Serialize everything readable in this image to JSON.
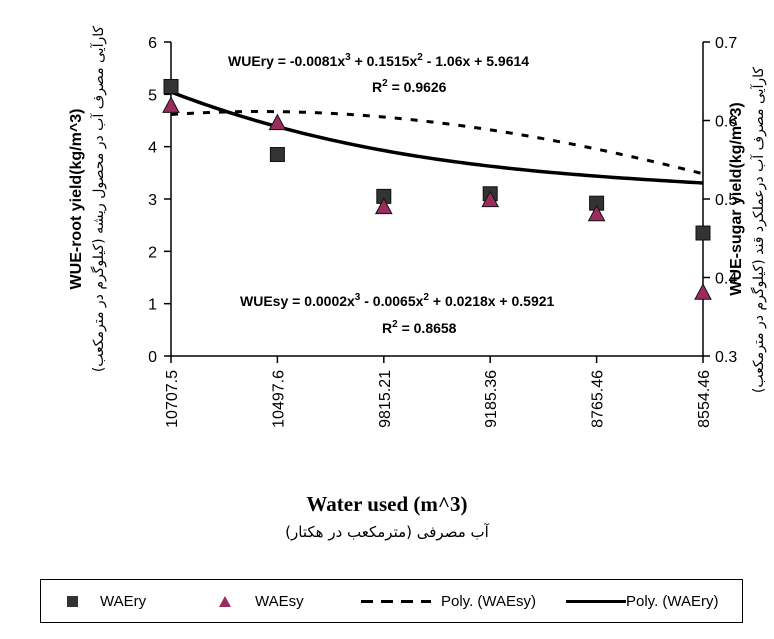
{
  "chart_data": {
    "type": "line",
    "categories": [
      "10707.5",
      "10497.6",
      "9815.21",
      "9185.36",
      "8765.46",
      "8554.46"
    ],
    "x_title": "Water used (m^3)",
    "x_subtitle": "آب مصرفی (مترمکعب در هکتار)",
    "y_left": {
      "title": "WUE-root yield(kg/m^3)",
      "title_fa": "کارآیی مصرف آب در محصول ریشه (کیلوگرم در مترمکعب)",
      "range": [
        0,
        6
      ],
      "ticks": [
        "0",
        "1",
        "2",
        "3",
        "4",
        "5",
        "6"
      ]
    },
    "y_right": {
      "title": "WUE-sugar yield(kg/m^3)",
      "title_fa": "کارآیی مصرف آب درعملکرد قند (کیلوگرم در مترمکعب)",
      "range": [
        0.3,
        0.7
      ],
      "ticks": [
        "0.3",
        "0.4",
        "0.5",
        "0.6",
        "0.7"
      ]
    },
    "series": [
      {
        "name": "WAEry",
        "axis": "left",
        "marker": "square",
        "color": "#333333",
        "values": [
          5.15,
          3.85,
          3.05,
          3.1,
          2.92,
          2.35
        ]
      },
      {
        "name": "WAEsy",
        "axis": "right",
        "marker": "triangle",
        "color": "#9a2d5e",
        "values": [
          0.618,
          0.596,
          0.489,
          0.498,
          0.48,
          0.38
        ]
      },
      {
        "name": "Poly. (WAEsy)",
        "axis": "right",
        "style": "dashed",
        "coeffs": [
          0.0002,
          -0.0065,
          0.0218,
          0.5921
        ]
      },
      {
        "name": "Poly. (WAEry)",
        "axis": "left",
        "style": "solid",
        "coeffs": [
          -0.0081,
          0.1515,
          -1.06,
          5.9614
        ]
      }
    ],
    "annotations": {
      "ry_eq_a": "WUEry = -0.0081x",
      "ry_eq_b": " + 0.1515x",
      "ry_eq_c": " - 1.06x + 5.9614",
      "ry_r2_label": "R",
      "ry_r2_value": " = 0.9626",
      "sy_eq_a": "WUEsy = 0.0002x",
      "sy_eq_b": " - 0.0065x",
      "sy_eq_c": " + 0.0218x + 0.5921",
      "sy_r2_label": "R",
      "sy_r2_value": " = 0.8658",
      "sup3": "3",
      "sup2": "2"
    },
    "legend_position": "bottom",
    "grid": false
  }
}
